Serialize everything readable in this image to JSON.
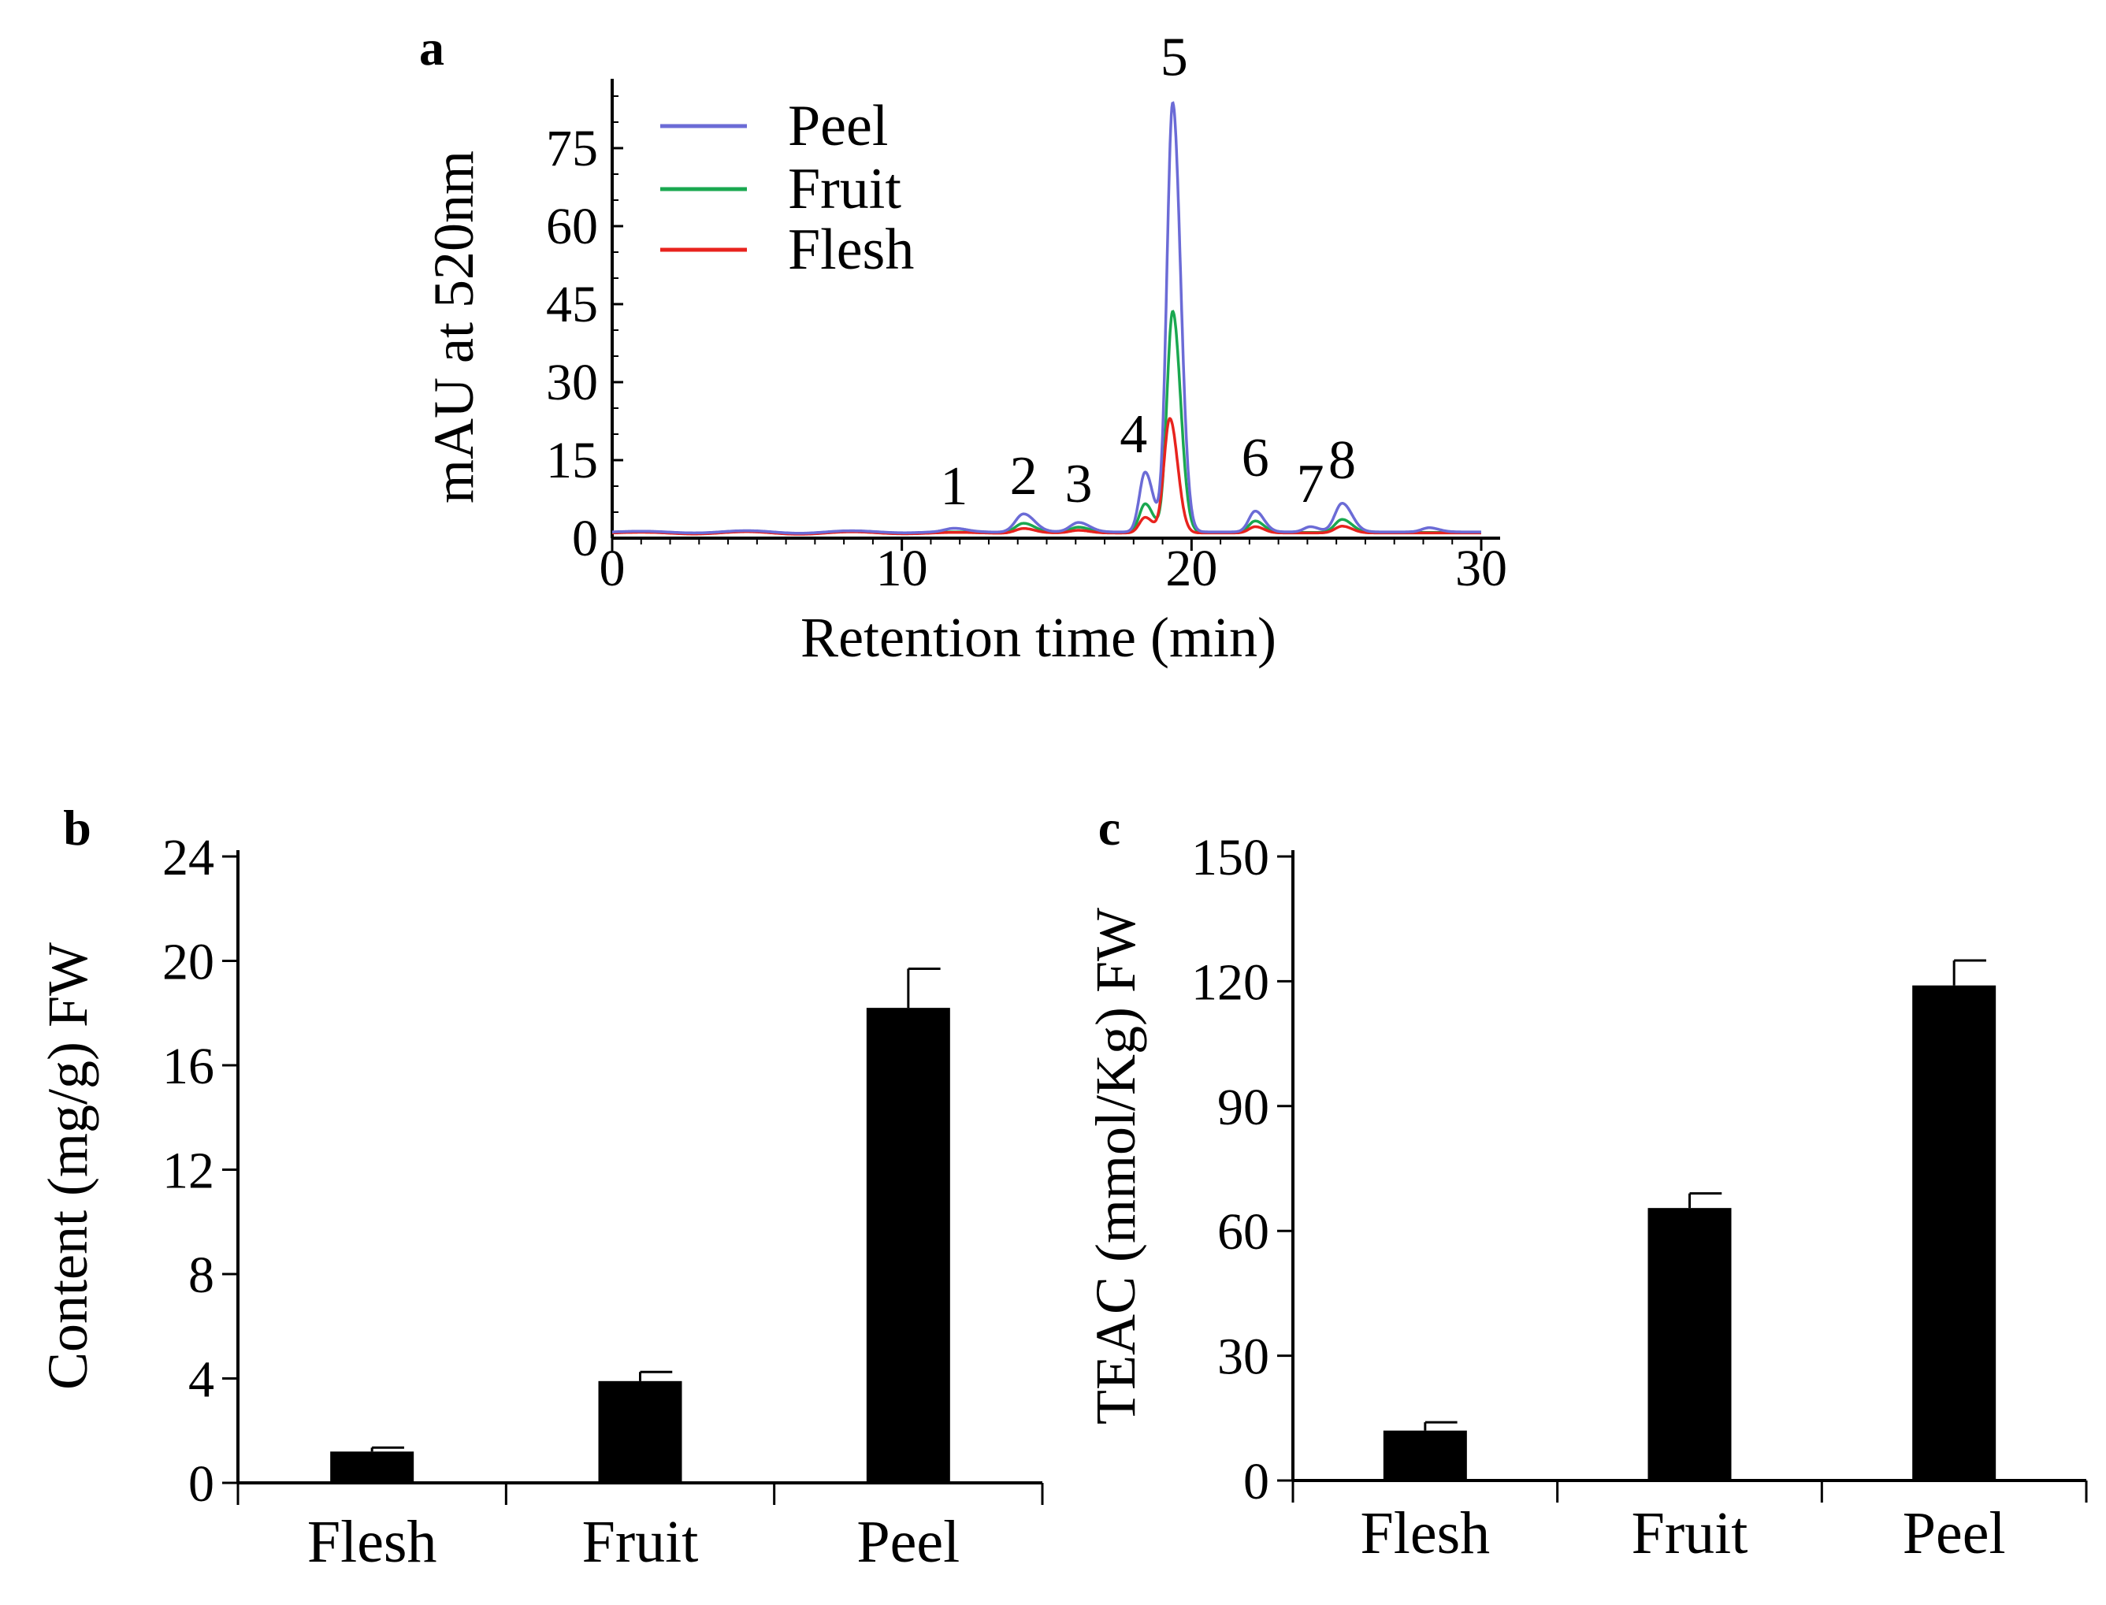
{
  "chart_data": [
    {
      "panel": "a",
      "type": "line",
      "title": "",
      "xlabel": "Retention time (min)",
      "ylabel": "mAU at 520nm",
      "xlim": [
        0,
        30
      ],
      "ylim": [
        0,
        85
      ],
      "xticks": [
        0,
        10,
        20,
        30
      ],
      "yticks": [
        0,
        15,
        30,
        45,
        60,
        75
      ],
      "legend_position": "top-left",
      "peak_labels": [
        {
          "label": "1",
          "x": 11.8,
          "y": 6.5
        },
        {
          "label": "2",
          "x": 14.2,
          "y": 8.5
        },
        {
          "label": "3",
          "x": 16.1,
          "y": 7
        },
        {
          "label": "4",
          "x": 18.0,
          "y": 16.5
        },
        {
          "label": "5",
          "x": 19.4,
          "y": 89
        },
        {
          "label": "6",
          "x": 22.2,
          "y": 12
        },
        {
          "label": "7",
          "x": 24.1,
          "y": 7
        },
        {
          "label": "8",
          "x": 25.2,
          "y": 11.5
        }
      ],
      "series": [
        {
          "name": "Peel",
          "color": "#6b6bd6",
          "baseline": 1.2,
          "peaks": [
            {
              "x": 11.8,
              "h": 0.6,
              "w": 0.3
            },
            {
              "x": 14.2,
              "h": 3.5,
              "w": 0.28
            },
            {
              "x": 16.1,
              "h": 1.8,
              "w": 0.28
            },
            {
              "x": 18.4,
              "h": 11.5,
              "w": 0.2
            },
            {
              "x": 19.35,
              "h": 82.5,
              "w": 0.2
            },
            {
              "x": 22.2,
              "h": 4.0,
              "w": 0.22
            },
            {
              "x": 24.1,
              "h": 1.0,
              "w": 0.22
            },
            {
              "x": 25.2,
              "h": 5.5,
              "w": 0.25
            },
            {
              "x": 28.2,
              "h": 0.8,
              "w": 0.25
            }
          ]
        },
        {
          "name": "Fruit",
          "color": "#1aa850",
          "baseline": 1.1,
          "peaks": [
            {
              "x": 14.2,
              "h": 1.8,
              "w": 0.28
            },
            {
              "x": 16.1,
              "h": 1.0,
              "w": 0.28
            },
            {
              "x": 18.4,
              "h": 5.5,
              "w": 0.2
            },
            {
              "x": 19.35,
              "h": 42.5,
              "w": 0.2
            },
            {
              "x": 22.2,
              "h": 2.2,
              "w": 0.22
            },
            {
              "x": 25.2,
              "h": 2.5,
              "w": 0.25
            }
          ]
        },
        {
          "name": "Flesh",
          "color": "#e8231e",
          "baseline": 1.0,
          "peaks": [
            {
              "x": 14.2,
              "h": 0.9,
              "w": 0.28
            },
            {
              "x": 16.1,
              "h": 0.5,
              "w": 0.28
            },
            {
              "x": 18.4,
              "h": 3.0,
              "w": 0.2
            },
            {
              "x": 19.25,
              "h": 22.0,
              "w": 0.2
            },
            {
              "x": 22.2,
              "h": 1.2,
              "w": 0.22
            },
            {
              "x": 25.2,
              "h": 1.3,
              "w": 0.25
            }
          ]
        }
      ]
    },
    {
      "panel": "b",
      "type": "bar",
      "title": "",
      "xlabel": "",
      "ylabel": "Content (mg/g) FW",
      "ylim": [
        0,
        24
      ],
      "yticks": [
        0,
        4,
        8,
        12,
        16,
        20,
        24
      ],
      "categories": [
        "Flesh",
        "Fruit",
        "Peel"
      ],
      "values": [
        1.2,
        3.9,
        18.2
      ],
      "errors": [
        0.15,
        0.35,
        1.5
      ],
      "bar_color": "#000000"
    },
    {
      "panel": "c",
      "type": "bar",
      "title": "",
      "xlabel": "",
      "ylabel": "TEAC (mmol/Kg) FW",
      "ylim": [
        0,
        150
      ],
      "yticks": [
        0,
        30,
        60,
        90,
        120,
        150
      ],
      "categories": [
        "Flesh",
        "Fruit",
        "Peel"
      ],
      "values": [
        12,
        65.5,
        119
      ],
      "errors": [
        2,
        3.5,
        6
      ],
      "bar_color": "#000000"
    }
  ]
}
